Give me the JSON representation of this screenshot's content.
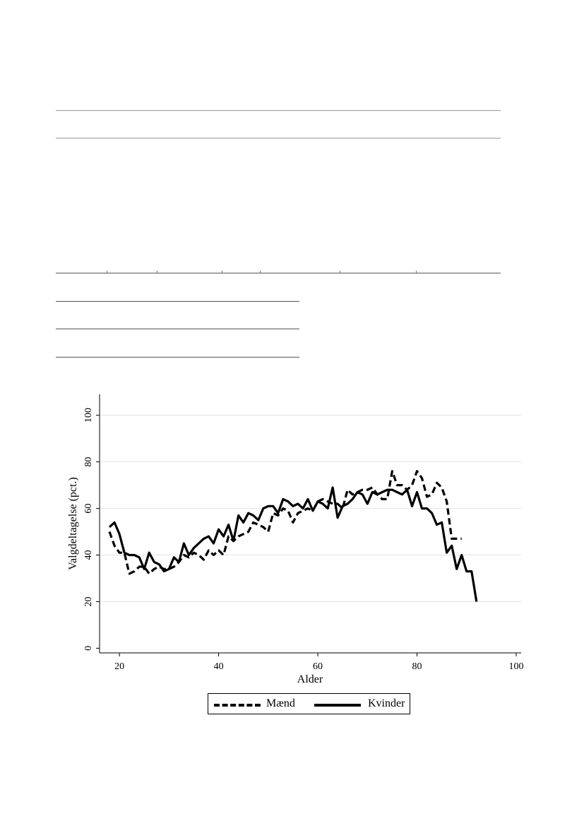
{
  "page": {
    "table_rules": [
      "rule-top-1",
      "rule-top-2",
      "rule-mid",
      "rule-short-1",
      "rule-short-2",
      "rule-short-3"
    ]
  },
  "chart_data": {
    "type": "line",
    "title": "",
    "xlabel": "Alder",
    "ylabel": "Valgdeltagelse (pct.)",
    "xlim": [
      16,
      101
    ],
    "ylim": [
      -2,
      109
    ],
    "xticks": [
      20,
      40,
      60,
      80,
      100
    ],
    "yticks": [
      0,
      20,
      40,
      60,
      80,
      100
    ],
    "grid": true,
    "legend_position": "bottom-center",
    "series": [
      {
        "name": "Mænd",
        "style": "dashed",
        "color": "#000000",
        "x": [
          18,
          19,
          20,
          21,
          22,
          23,
          24,
          25,
          26,
          27,
          28,
          29,
          30,
          31,
          32,
          33,
          34,
          35,
          36,
          37,
          38,
          39,
          40,
          41,
          42,
          43,
          44,
          45,
          46,
          47,
          48,
          49,
          50,
          51,
          52,
          53,
          54,
          55,
          56,
          57,
          58,
          59,
          60,
          61,
          62,
          63,
          64,
          65,
          66,
          67,
          68,
          69,
          70,
          71,
          72,
          73,
          74,
          75,
          76,
          77,
          78,
          79,
          80,
          81,
          82,
          83,
          84,
          85,
          86,
          87,
          88,
          89
        ],
        "y": [
          50,
          44,
          41,
          41,
          32,
          33,
          35,
          35,
          32,
          34,
          35,
          34,
          34,
          35,
          37,
          40,
          39,
          41,
          40,
          38,
          42,
          40,
          42,
          40,
          48,
          46,
          48,
          49,
          50,
          54,
          53,
          52,
          50,
          58,
          57,
          60,
          59,
          54,
          58,
          59,
          60,
          59,
          63,
          64,
          63,
          62,
          62,
          60,
          68,
          66,
          67,
          68,
          68,
          69,
          66,
          64,
          64,
          76,
          70,
          70,
          68,
          70,
          76,
          73,
          65,
          66,
          71,
          69,
          63,
          47,
          47,
          47
        ]
      },
      {
        "name": "Kvinder",
        "style": "solid",
        "color": "#000000",
        "x": [
          18,
          19,
          20,
          21,
          22,
          23,
          24,
          25,
          26,
          27,
          28,
          29,
          30,
          31,
          32,
          33,
          34,
          35,
          36,
          37,
          38,
          39,
          40,
          41,
          42,
          43,
          44,
          45,
          46,
          47,
          48,
          49,
          50,
          51,
          52,
          53,
          54,
          55,
          56,
          57,
          58,
          59,
          60,
          61,
          62,
          63,
          64,
          65,
          66,
          67,
          68,
          69,
          70,
          71,
          72,
          73,
          74,
          75,
          76,
          77,
          78,
          79,
          80,
          81,
          82,
          83,
          84,
          85,
          86,
          87,
          88,
          89,
          90,
          91,
          92
        ],
        "y": [
          52,
          54,
          49,
          41,
          40,
          40,
          39,
          34,
          41,
          37,
          36,
          33,
          34,
          39,
          37,
          45,
          40,
          43,
          45,
          47,
          48,
          45,
          51,
          48,
          53,
          46,
          57,
          54,
          58,
          57,
          55,
          60,
          61,
          61,
          58,
          64,
          63,
          61,
          62,
          60,
          64,
          59,
          63,
          62,
          60,
          69,
          56,
          61,
          62,
          64,
          67,
          66,
          62,
          67,
          66,
          67,
          68,
          68,
          67,
          66,
          68,
          61,
          67,
          60,
          60,
          58,
          53,
          54,
          41,
          44,
          34,
          40,
          33,
          33,
          20
        ]
      }
    ]
  }
}
